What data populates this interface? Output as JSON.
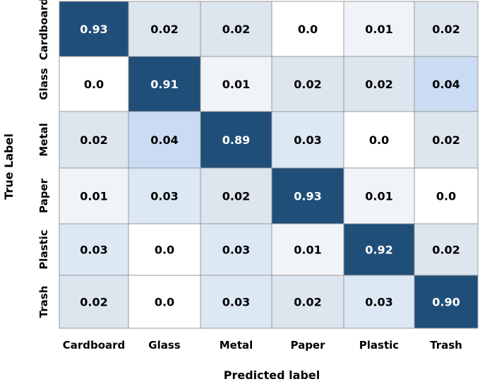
{
  "chart_data": {
    "type": "heatmap",
    "title": "",
    "xlabel": "Predicted label",
    "ylabel": "True Label",
    "x_categories": [
      "Cardboard",
      "Glass",
      "Metal",
      "Paper",
      "Plastic",
      "Trash"
    ],
    "y_categories": [
      "Cardboard",
      "Glass",
      "Metal",
      "Paper",
      "Plastic",
      "Trash"
    ],
    "values": [
      [
        0.93,
        0.02,
        0.02,
        0.0,
        0.01,
        0.02
      ],
      [
        0.0,
        0.91,
        0.01,
        0.02,
        0.02,
        0.04
      ],
      [
        0.02,
        0.04,
        0.89,
        0.03,
        0.0,
        0.02
      ],
      [
        0.01,
        0.03,
        0.02,
        0.93,
        0.01,
        0.0
      ],
      [
        0.03,
        0.0,
        0.03,
        0.01,
        0.92,
        0.02
      ],
      [
        0.02,
        0.0,
        0.03,
        0.02,
        0.03,
        0.9
      ]
    ],
    "value_labels": [
      [
        "0.93",
        "0.02",
        "0.02",
        "0.0",
        "0.01",
        "0.02"
      ],
      [
        "0.0",
        "0.91",
        "0.01",
        "0.02",
        "0.02",
        "0.04"
      ],
      [
        "0.02",
        "0.04",
        "0.89",
        "0.03",
        "0.0",
        "0.02"
      ],
      [
        "0.01",
        "0.03",
        "0.02",
        "0.93",
        "0.01",
        "0.0"
      ],
      [
        "0.03",
        "0.0",
        "0.03",
        "0.01",
        "0.92",
        "0.02"
      ],
      [
        "0.02",
        "0.0",
        "0.03",
        "0.02",
        "0.03",
        "0.90"
      ]
    ],
    "colors": {
      "diagonal": "#1f4e79",
      "off_diagonal_scale": [
        "#ffffff",
        "#f0f4f9",
        "#dde5ef",
        "#dde8f5",
        "#c9dcf3"
      ],
      "grid": "#999999",
      "dark_text": "#ffffff",
      "light_text": "#000000"
    }
  }
}
